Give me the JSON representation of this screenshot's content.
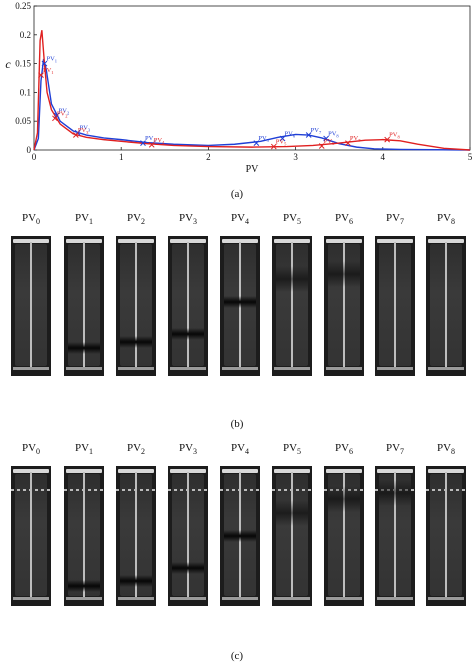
{
  "chart_data": {
    "type": "line",
    "xlabel": "PV",
    "ylabel": "c",
    "xlim": [
      0,
      5
    ],
    "ylim": [
      0,
      0.25
    ],
    "x_ticks": [
      "0",
      "1",
      "2",
      "3",
      "4",
      "5"
    ],
    "y_ticks": [
      "0",
      "0.05",
      "0.1",
      "0.15",
      "0.2",
      "0.25"
    ],
    "grid": false,
    "series": [
      {
        "color": "#1f3fd6",
        "x": [
          0,
          0.05,
          0.08,
          0.11,
          0.14,
          0.2,
          0.3,
          0.45,
          0.6,
          0.8,
          1.0,
          1.3,
          1.6,
          2.0,
          2.3,
          2.6,
          2.8,
          3.0,
          3.15,
          3.3,
          3.5,
          3.7,
          3.9,
          4.2,
          5.0
        ],
        "y": [
          0,
          0.02,
          0.12,
          0.158,
          0.14,
          0.08,
          0.05,
          0.033,
          0.026,
          0.021,
          0.018,
          0.013,
          0.01,
          0.008,
          0.01,
          0.015,
          0.022,
          0.027,
          0.026,
          0.021,
          0.011,
          0.005,
          0.002,
          0.001,
          0
        ]
      },
      {
        "color": "#e02020",
        "x": [
          0,
          0.04,
          0.07,
          0.09,
          0.12,
          0.15,
          0.2,
          0.3,
          0.45,
          0.6,
          0.8,
          1.0,
          1.3,
          1.6,
          2.0,
          2.5,
          2.9,
          3.2,
          3.5,
          3.8,
          4.0,
          4.2,
          4.4,
          4.7,
          5.0
        ],
        "y": [
          0,
          0.03,
          0.19,
          0.208,
          0.15,
          0.1,
          0.07,
          0.045,
          0.028,
          0.022,
          0.018,
          0.015,
          0.011,
          0.008,
          0.006,
          0.005,
          0.006,
          0.008,
          0.012,
          0.017,
          0.018,
          0.016,
          0.01,
          0.003,
          0
        ]
      }
    ],
    "markers": [
      {
        "series": 0,
        "x": 0.12,
        "y": 0.15,
        "label": "PV",
        "sub": "1"
      },
      {
        "series": 0,
        "x": 0.26,
        "y": 0.06,
        "label": "PV",
        "sub": "2"
      },
      {
        "series": 0,
        "x": 0.5,
        "y": 0.03,
        "label": "PV",
        "sub": "3"
      },
      {
        "series": 0,
        "x": 1.25,
        "y": 0.012,
        "label": "PV",
        "sub": "4"
      },
      {
        "series": 0,
        "x": 2.55,
        "y": 0.012,
        "label": "PV",
        "sub": "5"
      },
      {
        "series": 0,
        "x": 2.85,
        "y": 0.02,
        "label": "PV",
        "sub": "6"
      },
      {
        "series": 0,
        "x": 3.15,
        "y": 0.026,
        "label": "PV",
        "sub": "7"
      },
      {
        "series": 0,
        "x": 3.35,
        "y": 0.02,
        "label": "PV",
        "sub": "8"
      },
      {
        "series": 1,
        "x": 0.08,
        "y": 0.13,
        "label": "PV",
        "sub": "1"
      },
      {
        "series": 1,
        "x": 0.24,
        "y": 0.055,
        "label": "PV",
        "sub": "2"
      },
      {
        "series": 1,
        "x": 0.48,
        "y": 0.026,
        "label": "PV",
        "sub": "3"
      },
      {
        "series": 1,
        "x": 1.35,
        "y": 0.009,
        "label": "PV",
        "sub": "4"
      },
      {
        "series": 1,
        "x": 2.75,
        "y": 0.006,
        "label": "PV",
        "sub": "5"
      },
      {
        "series": 1,
        "x": 3.3,
        "y": 0.007,
        "label": "PV",
        "sub": "6"
      },
      {
        "series": 1,
        "x": 3.6,
        "y": 0.012,
        "label": "PV",
        "sub": "7"
      },
      {
        "series": 1,
        "x": 4.05,
        "y": 0.018,
        "label": "PV",
        "sub": "8"
      }
    ]
  },
  "captions": {
    "a": "(a)",
    "b": "(b)",
    "c": "(c)"
  },
  "pv_labels": [
    {
      "main": "PV",
      "sub": "0"
    },
    {
      "main": "PV",
      "sub": "1"
    },
    {
      "main": "PV",
      "sub": "2"
    },
    {
      "main": "PV",
      "sub": "3"
    },
    {
      "main": "PV",
      "sub": "4"
    },
    {
      "main": "PV",
      "sub": "5"
    },
    {
      "main": "PV",
      "sub": "6"
    },
    {
      "main": "PV",
      "sub": "7"
    },
    {
      "main": "PV",
      "sub": "8"
    }
  ],
  "row_b_front_levels": [
    null,
    0.82,
    0.77,
    0.7,
    0.43,
    0.18,
    0.14,
    null,
    null
  ],
  "row_c_front_levels": [
    null,
    0.88,
    0.84,
    0.73,
    0.47,
    0.22,
    0.1,
    0.05,
    null
  ]
}
